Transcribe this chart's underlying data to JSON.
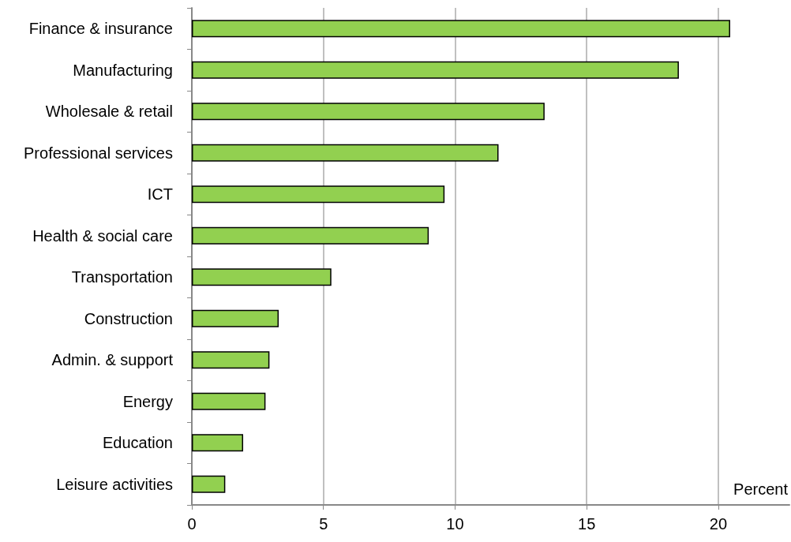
{
  "chart_data": {
    "type": "bar",
    "orientation": "horizontal",
    "xlabel": "Percent",
    "categories": [
      "Finance & insurance",
      "Manufacturing",
      "Wholesale & retail",
      "Professional services",
      "ICT",
      "Health & social care",
      "Transportation",
      "Construction",
      "Admin. & support",
      "Energy",
      "Education",
      "Leisure activities"
    ],
    "values": [
      20.45,
      18.5,
      13.4,
      11.65,
      9.6,
      9.0,
      5.3,
      3.3,
      2.95,
      2.8,
      1.95,
      1.27
    ],
    "color": "#92d050",
    "xlim": [
      0,
      22.7
    ],
    "xticks": [
      0,
      5,
      10,
      15,
      20
    ],
    "grid": "x"
  }
}
